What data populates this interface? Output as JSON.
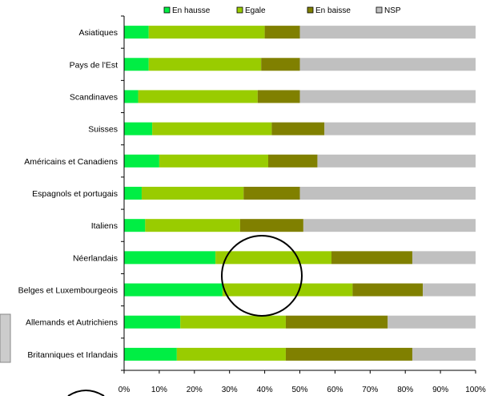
{
  "chart_data": {
    "type": "bar",
    "stacked": "percent",
    "orientation": "horizontal",
    "categories": [
      "Asiatiques",
      "Pays de l'Est",
      "Scandinaves",
      "Suisses",
      "Américains et Canadiens",
      "Espagnols et portugais",
      "Italiens",
      "Néerlandais",
      "Belges et Luxembourgeois",
      "Allemands et Autrichiens",
      "Britanniques et Irlandais"
    ],
    "series": [
      {
        "name": "En hausse",
        "color": "#00ee44",
        "values": [
          7,
          7,
          4,
          8,
          10,
          5,
          6,
          26,
          28,
          16,
          15
        ]
      },
      {
        "name": "Egale",
        "color": "#99cc00",
        "values": [
          33,
          32,
          34,
          34,
          31,
          29,
          27,
          33,
          37,
          30,
          31
        ]
      },
      {
        "name": "En baisse",
        "color": "#808000",
        "values": [
          10,
          11,
          12,
          15,
          14,
          16,
          18,
          23,
          20,
          29,
          36
        ]
      },
      {
        "name": "NSP",
        "color": "#c0c0c0",
        "values": [
          50,
          50,
          50,
          43,
          45,
          50,
          49,
          18,
          15,
          25,
          18
        ]
      }
    ],
    "x_ticks": [
      "0%",
      "10%",
      "20%",
      "30%",
      "40%",
      "50%",
      "60%",
      "70%",
      "80%",
      "90%",
      "100%"
    ],
    "xlim": [
      0,
      100
    ],
    "legend": "top",
    "grid": false
  }
}
